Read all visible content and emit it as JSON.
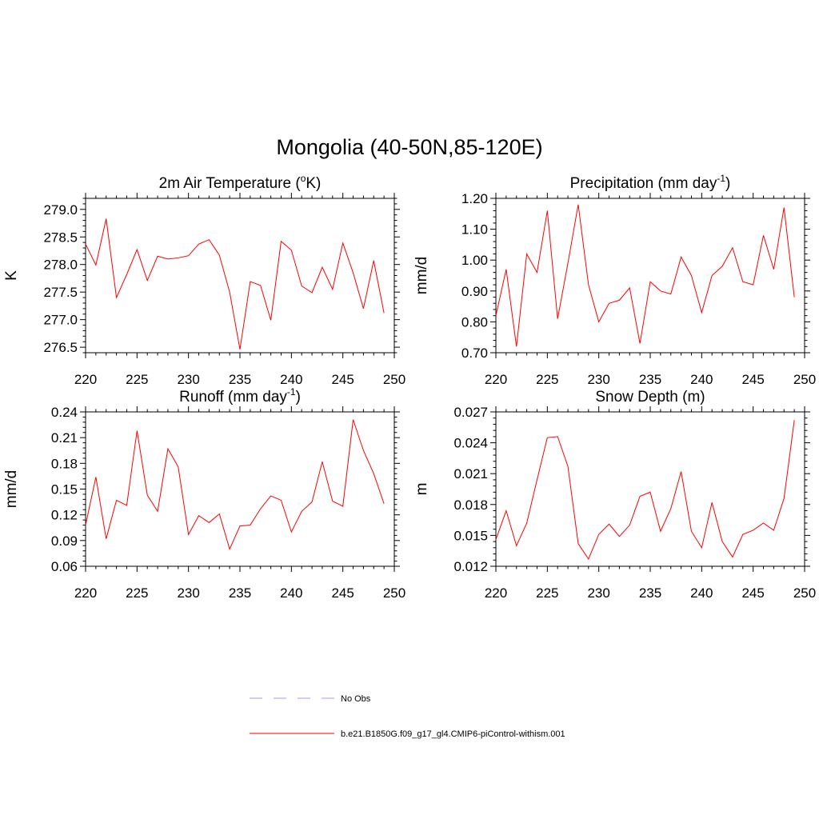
{
  "page": {
    "title": "Mongolia (40-50N,85-120E)"
  },
  "colors": {
    "series": "#ff0000",
    "obs": "#9999ff",
    "axis": "#000000"
  },
  "chart_data": [
    {
      "type": "line",
      "title": "2m Air Temperature (",
      "title_sup": "o",
      "title_after": "K)",
      "ylabel": "K",
      "xlim": [
        220,
        250
      ],
      "ylim": [
        276.4,
        279.2
      ],
      "xticks": [
        220,
        225,
        230,
        235,
        240,
        245,
        250
      ],
      "yticks": [
        276.5,
        277.0,
        277.5,
        278.0,
        278.5,
        279.0
      ],
      "ytick_labels": [
        "276.5",
        "277.0",
        "277.5",
        "278.0",
        "278.5",
        "279.0"
      ],
      "x": [
        220,
        221,
        222,
        223,
        224,
        225,
        226,
        227,
        228,
        229,
        230,
        231,
        232,
        233,
        234,
        235,
        236,
        237,
        238,
        239,
        240,
        241,
        242,
        243,
        244,
        245,
        246,
        247,
        248,
        249
      ],
      "series": [
        {
          "name": "b.e21.B1850G.f09_g17_gl4.CMIP6-piControl-withism.001",
          "values": [
            278.37,
            277.99,
            278.83,
            277.4,
            277.82,
            278.27,
            277.71,
            278.15,
            278.1,
            278.12,
            278.16,
            278.37,
            278.45,
            278.17,
            277.5,
            276.46,
            277.69,
            277.62,
            276.99,
            278.42,
            278.26,
            277.61,
            277.49,
            277.95,
            277.55,
            278.39,
            277.85,
            277.2,
            278.07,
            277.12
          ]
        }
      ]
    },
    {
      "type": "line",
      "title": "Precipitation (mm day",
      "title_sup": "-1",
      "title_after": ")",
      "ylabel": "mm/d",
      "xlim": [
        220,
        250
      ],
      "ylim": [
        0.7,
        1.2
      ],
      "xticks": [
        220,
        225,
        230,
        235,
        240,
        245,
        250
      ],
      "yticks": [
        0.7,
        0.8,
        0.9,
        1.0,
        1.1,
        1.2
      ],
      "ytick_labels": [
        "0.70",
        "0.80",
        "0.90",
        "1.00",
        "1.10",
        "1.20"
      ],
      "x": [
        220,
        221,
        222,
        223,
        224,
        225,
        226,
        227,
        228,
        229,
        230,
        231,
        232,
        233,
        234,
        235,
        236,
        237,
        238,
        239,
        240,
        241,
        242,
        243,
        244,
        245,
        246,
        247,
        248,
        249
      ],
      "series": [
        {
          "name": "b.e21.B1850G.f09_g17_gl4.CMIP6-piControl-withism.001",
          "values": [
            0.82,
            0.97,
            0.72,
            1.02,
            0.96,
            1.16,
            0.81,
            0.99,
            1.18,
            0.92,
            0.8,
            0.86,
            0.87,
            0.91,
            0.73,
            0.93,
            0.9,
            0.89,
            1.01,
            0.95,
            0.83,
            0.95,
            0.98,
            1.04,
            0.93,
            0.92,
            1.08,
            0.97,
            1.17,
            0.88
          ]
        }
      ]
    },
    {
      "type": "line",
      "title": "Runoff (mm day",
      "title_sup": "-1",
      "title_after": ")",
      "ylabel": "mm/d",
      "xlim": [
        220,
        250
      ],
      "ylim": [
        0.06,
        0.24
      ],
      "xticks": [
        220,
        225,
        230,
        235,
        240,
        245,
        250
      ],
      "yticks": [
        0.06,
        0.09,
        0.12,
        0.15,
        0.18,
        0.21,
        0.24
      ],
      "ytick_labels": [
        "0.06",
        "0.09",
        "0.12",
        "0.15",
        "0.18",
        "0.21",
        "0.24"
      ],
      "x": [
        220,
        221,
        222,
        223,
        224,
        225,
        226,
        227,
        228,
        229,
        230,
        231,
        232,
        233,
        234,
        235,
        236,
        237,
        238,
        239,
        240,
        241,
        242,
        243,
        244,
        245,
        246,
        247,
        248,
        249
      ],
      "series": [
        {
          "name": "b.e21.B1850G.f09_g17_gl4.CMIP6-piControl-withism.001",
          "values": [
            0.108,
            0.164,
            0.092,
            0.137,
            0.131,
            0.218,
            0.143,
            0.124,
            0.197,
            0.176,
            0.097,
            0.119,
            0.111,
            0.121,
            0.08,
            0.107,
            0.108,
            0.127,
            0.142,
            0.137,
            0.1,
            0.124,
            0.135,
            0.182,
            0.136,
            0.13,
            0.231,
            0.195,
            0.168,
            0.133
          ]
        }
      ]
    },
    {
      "type": "line",
      "title": "Snow Depth (m)",
      "title_sup": "",
      "title_after": "",
      "ylabel": "m",
      "xlim": [
        220,
        250
      ],
      "ylim": [
        0.012,
        0.027
      ],
      "xticks": [
        220,
        225,
        230,
        235,
        240,
        245,
        250
      ],
      "yticks": [
        0.012,
        0.015,
        0.018,
        0.021,
        0.024,
        0.027
      ],
      "ytick_labels": [
        "0.012",
        "0.015",
        "0.018",
        "0.021",
        "0.024",
        "0.027"
      ],
      "x": [
        220,
        221,
        222,
        223,
        224,
        225,
        226,
        227,
        228,
        229,
        230,
        231,
        232,
        233,
        234,
        235,
        236,
        237,
        238,
        239,
        240,
        241,
        242,
        243,
        244,
        245,
        246,
        247,
        248,
        249
      ],
      "series": [
        {
          "name": "b.e21.B1850G.f09_g17_gl4.CMIP6-piControl-withism.001",
          "values": [
            0.0146,
            0.0174,
            0.014,
            0.0162,
            0.0204,
            0.0245,
            0.0246,
            0.0217,
            0.0142,
            0.0127,
            0.0151,
            0.0161,
            0.0149,
            0.016,
            0.0188,
            0.0192,
            0.0154,
            0.0176,
            0.0212,
            0.0154,
            0.0138,
            0.0182,
            0.0144,
            0.0129,
            0.0151,
            0.0155,
            0.0162,
            0.0155,
            0.0186,
            0.0262
          ]
        }
      ]
    }
  ],
  "legend": {
    "items": [
      {
        "label": "No Obs",
        "style": "dashed",
        "color": "#9999ff"
      },
      {
        "label": "b.e21.B1850G.f09_g17_gl4.CMIP6-piControl-withism.001",
        "style": "solid",
        "color": "#ff0000"
      }
    ]
  }
}
